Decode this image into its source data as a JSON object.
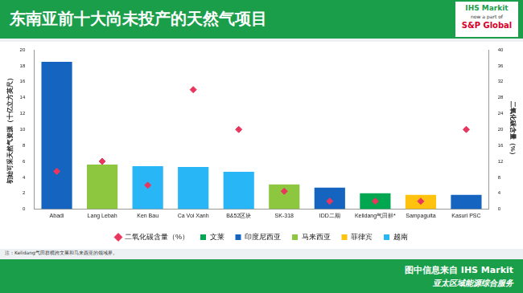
{
  "page": {
    "logo": [
      "IHS Markit",
      "now a part of",
      "S&P Global"
    ],
    "footer": [
      "图中信息来自 IHS Markit",
      "亚太区域能源综合服务"
    ]
  },
  "chart_data": {
    "type": "bar",
    "title": "东南亚前十大尚未投产的天然气项目",
    "y_label": "初始可采天然气资源（十亿立方英尺）",
    "y2_label": "二氧化碳含量（%）",
    "note": "注：Kelidang气田群横跨文莱和马来西亚的领域界。",
    "categories": [
      "Abadi",
      "Lang Lebah",
      "Ken Bau",
      "Ca Voi Xanh",
      "B&52区块",
      "SK-318",
      "IDD二期",
      "Kelidang气田群*",
      "Sampaguita",
      "Kasuri PSC"
    ],
    "series": [
      {
        "name": "文莱",
        "color": "#00a650",
        "values": [
          null,
          null,
          null,
          null,
          null,
          null,
          null,
          2.0,
          null,
          null
        ]
      },
      {
        "name": "印度尼西亚",
        "color": "#1565c0",
        "values": [
          18.5,
          null,
          null,
          null,
          null,
          null,
          2.7,
          null,
          null,
          1.8
        ]
      },
      {
        "name": "马来西亚",
        "color": "#8dc63f",
        "values": [
          null,
          5.6,
          null,
          null,
          null,
          3.1,
          null,
          null,
          null,
          null
        ]
      },
      {
        "name": "菲律宾",
        "color": "#ffc20e",
        "values": [
          null,
          null,
          null,
          null,
          null,
          null,
          null,
          null,
          1.8,
          null
        ]
      },
      {
        "name": "越南",
        "color": "#29b6f6",
        "values": [
          null,
          null,
          5.4,
          5.3,
          4.7,
          null,
          null,
          null,
          null,
          null
        ]
      },
      {
        "name": "二氧化碳含量（%）",
        "color": "#e8365d",
        "type": "scatter",
        "marker": "diamond",
        "axis": "y2",
        "values": [
          9.5,
          12,
          6,
          30,
          20,
          4.5,
          2,
          2,
          2,
          20
        ]
      }
    ],
    "ylim": [
      0,
      20
    ],
    "yticks": [
      0,
      2,
      4,
      6,
      8,
      10,
      12,
      14,
      16,
      18,
      20
    ],
    "y2lim": [
      0,
      40
    ],
    "y2ticks": [
      0,
      4,
      8,
      12,
      16,
      20,
      24,
      28,
      32,
      36,
      40
    ],
    "grid": false,
    "legend": "bottom"
  }
}
